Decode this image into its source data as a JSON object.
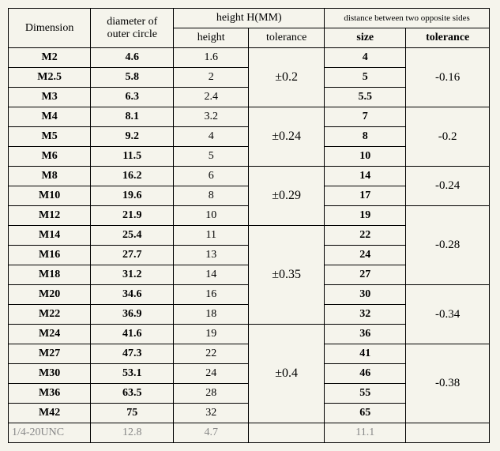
{
  "headers": {
    "dimension": "Dimension",
    "diameter": "diameter of outer circle",
    "height_group": "height H(MM)",
    "height": "height",
    "height_tol": "tolerance",
    "distance_group": "distance between two opposite sides",
    "size": "size",
    "size_tol": "tolerance"
  },
  "rows": [
    {
      "dim": "M2",
      "dia": "4.6",
      "h": "1.6",
      "size": "4"
    },
    {
      "dim": "M2.5",
      "dia": "5.8",
      "h": "2",
      "size": "5"
    },
    {
      "dim": "M3",
      "dia": "6.3",
      "h": "2.4",
      "size": "5.5"
    },
    {
      "dim": "M4",
      "dia": "8.1",
      "h": "3.2",
      "size": "7"
    },
    {
      "dim": "M5",
      "dia": "9.2",
      "h": "4",
      "size": "8"
    },
    {
      "dim": "M6",
      "dia": "11.5",
      "h": "5",
      "size": "10"
    },
    {
      "dim": "M8",
      "dia": "16.2",
      "h": "6",
      "size": "14"
    },
    {
      "dim": "M10",
      "dia": "19.6",
      "h": "8",
      "size": "17"
    },
    {
      "dim": "M12",
      "dia": "21.9",
      "h": "10",
      "size": "19"
    },
    {
      "dim": "M14",
      "dia": "25.4",
      "h": "11",
      "size": "22"
    },
    {
      "dim": "M16",
      "dia": "27.7",
      "h": "13",
      "size": "24"
    },
    {
      "dim": "M18",
      "dia": "31.2",
      "h": "14",
      "size": "27"
    },
    {
      "dim": "M20",
      "dia": "34.6",
      "h": "16",
      "size": "30"
    },
    {
      "dim": "M22",
      "dia": "36.9",
      "h": "18",
      "size": "32"
    },
    {
      "dim": "M24",
      "dia": "41.6",
      "h": "19",
      "size": "36"
    },
    {
      "dim": "M27",
      "dia": "47.3",
      "h": "22",
      "size": "41"
    },
    {
      "dim": "M30",
      "dia": "53.1",
      "h": "24",
      "size": "46"
    },
    {
      "dim": "M36",
      "dia": "63.5",
      "h": "28",
      "size": "55"
    },
    {
      "dim": "M42",
      "dia": "75",
      "h": "32",
      "size": "65"
    },
    {
      "dim": "1/4-20UNC",
      "dia": "12.8",
      "h": "4.7",
      "size": "11.1"
    }
  ],
  "height_tolerance_groups": [
    {
      "value": "±0.2",
      "span": 3,
      "start": 0
    },
    {
      "value": "±0.24",
      "span": 3,
      "start": 3
    },
    {
      "value": "±0.29",
      "span": 3,
      "start": 6
    },
    {
      "value": "±0.35",
      "span": 5,
      "start": 9
    },
    {
      "value": "±0.4",
      "span": 5,
      "start": 14
    },
    {
      "value": "",
      "span": 1,
      "start": 19
    }
  ],
  "size_tolerance_groups": [
    {
      "value": "-0.16",
      "span": 3,
      "start": 0
    },
    {
      "value": "-0.2",
      "span": 3,
      "start": 3
    },
    {
      "value": "-0.24",
      "span": 2,
      "start": 6
    },
    {
      "value": "-0.28",
      "span": 4,
      "start": 8
    },
    {
      "value": "-0.34",
      "span": 3,
      "start": 12
    },
    {
      "value": "-0.38",
      "span": 4,
      "start": 15
    },
    {
      "value": "",
      "span": 1,
      "start": 19
    }
  ],
  "style": {
    "background": "#f5f4ec",
    "border_color": "#000000",
    "text_color": "#000000",
    "muted_color": "#888888",
    "font_family": "Times New Roman",
    "font_size_body": 14,
    "font_size_small": 11
  }
}
